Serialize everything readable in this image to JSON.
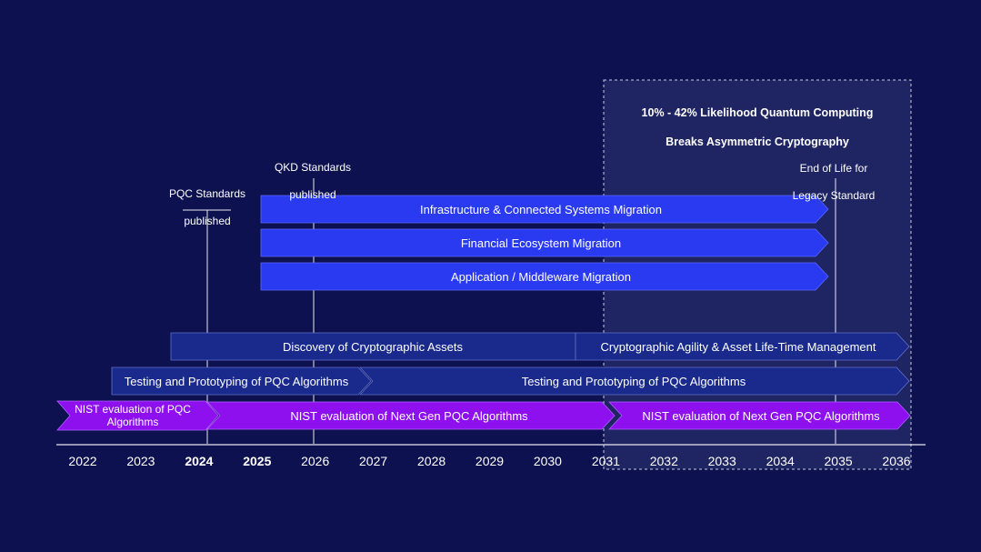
{
  "colors": {
    "background": "#0d1150",
    "bright_blue": "#2a3af0",
    "dark_blue": "#1a2a8c",
    "purple": "#8e10ee",
    "highlight_box": "#262b68",
    "line": "#e8e8f0"
  },
  "years": [
    "2022",
    "2023",
    "2024",
    "2025",
    "2026",
    "2027",
    "2028",
    "2029",
    "2030",
    "2031",
    "2032",
    "2033",
    "2034",
    "2035",
    "2036"
  ],
  "bold_years": [
    "2024",
    "2025"
  ],
  "highlight": {
    "title_line1": "10% - 42% Likelihood Quantum Computing",
    "title_line2": "Breaks Asymmetric Cryptography"
  },
  "milestones": [
    {
      "name": "pqc-standards",
      "line1": "PQC Standards",
      "line2": "published"
    },
    {
      "name": "qkd-standards",
      "line1": "QKD Standards",
      "line2": "published"
    },
    {
      "name": "end-of-life",
      "line1": "End of Life for",
      "line2": "Legacy Standard"
    }
  ],
  "bars": [
    {
      "name": "infrastructure-migration",
      "label": "Infrastructure & Connected Systems Migration",
      "color": "bright"
    },
    {
      "name": "financial-migration",
      "label": "Financial Ecosystem Migration",
      "color": "bright"
    },
    {
      "name": "application-migration",
      "label": "Application / Middleware Migration",
      "color": "bright"
    },
    {
      "name": "discovery-assets",
      "label": "Discovery of Cryptographic Assets",
      "color": "dark"
    },
    {
      "name": "crypto-agility",
      "label": "Cryptographic Agility & Asset Life-Time Management",
      "color": "dark"
    },
    {
      "name": "testing-prototyping-1",
      "label": "Testing and Prototyping of PQC Algorithms",
      "color": "dark"
    },
    {
      "name": "testing-prototyping-2",
      "label": "Testing and Prototyping of PQC Algorithms",
      "color": "dark"
    },
    {
      "name": "nist-eval-pqc",
      "label1": "NIST evaluation of PQC",
      "label2": "Algorithms",
      "color": "purple"
    },
    {
      "name": "nist-eval-next-gen-1",
      "label": "NIST evaluation of Next Gen PQC Algorithms",
      "color": "purple"
    },
    {
      "name": "nist-eval-next-gen-2",
      "label": "NIST evaluation of Next Gen PQC Algorithms",
      "color": "purple"
    }
  ]
}
